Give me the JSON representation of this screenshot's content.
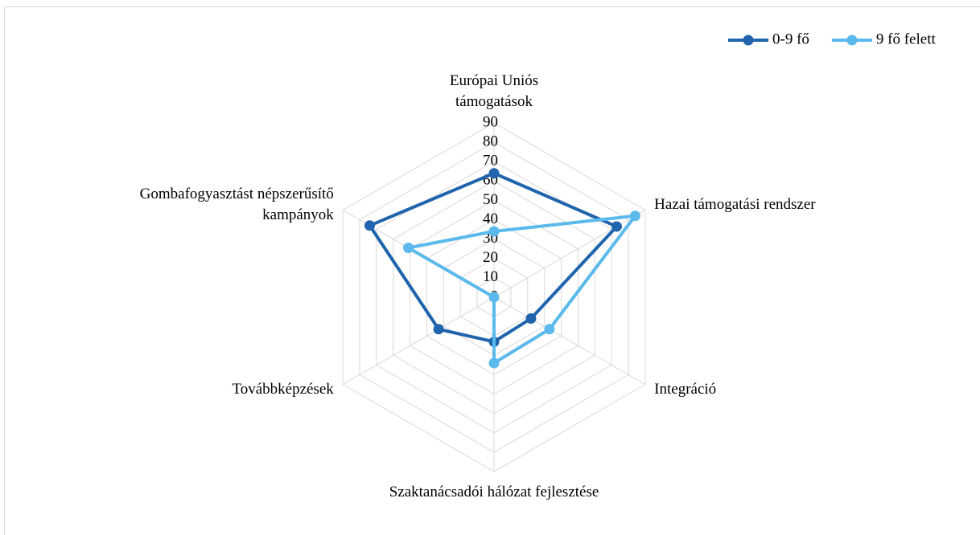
{
  "chart_data": {
    "type": "radar",
    "categories": [
      "Európai Uniós támogatások",
      "Hazai támogatási rendszer",
      "Integráció",
      "Szaktanácsadói hálózat fejlesztése",
      "Továbbképzések",
      "Gombafogyasztást népszerűsítő kampányok"
    ],
    "series": [
      {
        "name": "0-9 fő",
        "color": "#1f64ac",
        "values": [
          64,
          73,
          22,
          23,
          33,
          74
        ]
      },
      {
        "name": "9 fő felett",
        "color": "#5bb9ec",
        "values": [
          34,
          84,
          33,
          34,
          0,
          51
        ]
      }
    ],
    "ylim": [
      0,
      90
    ],
    "yticks": [
      0,
      10,
      20,
      30,
      40,
      50,
      60,
      70,
      80,
      90
    ],
    "grid": true,
    "legend": "top-right"
  }
}
